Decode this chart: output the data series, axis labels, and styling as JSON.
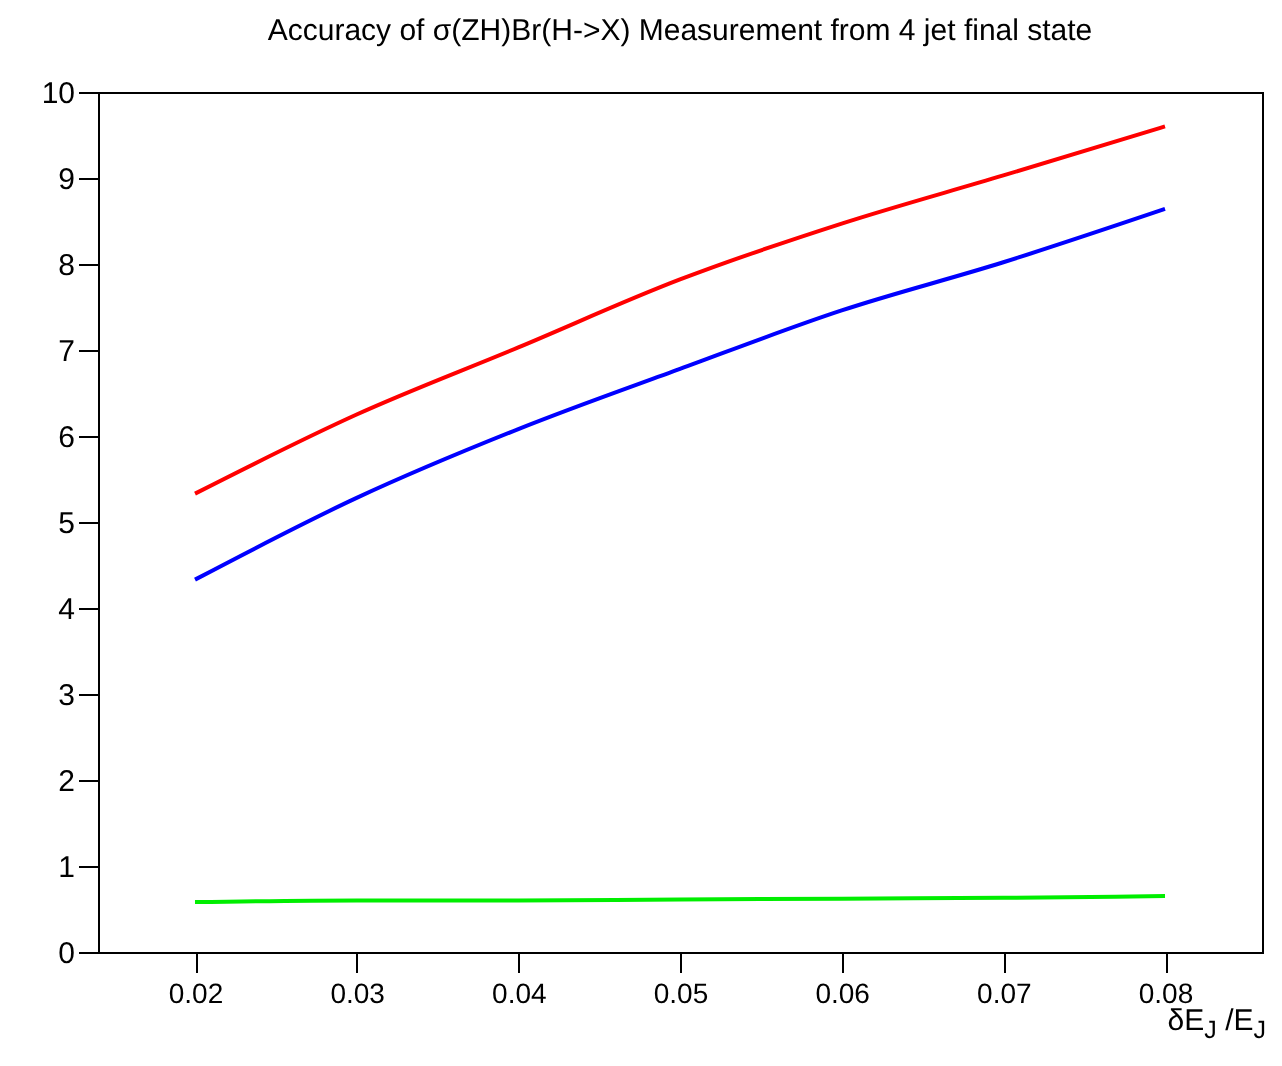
{
  "chart_data": {
    "type": "line",
    "title": "Accuracy of σ(ZH)Br(H->X) Measurement from 4 jet final state",
    "xlabel": "δE$_{J}$ /E$_{J}$",
    "x": [
      0.02,
      0.03,
      0.04,
      0.05,
      0.06,
      0.07,
      0.08
    ],
    "series": [
      {
        "color": "#ff0000",
        "values": [
          5.33,
          6.25,
          7.03,
          7.82,
          8.47,
          9.03,
          9.6
        ]
      },
      {
        "color": "#0000ff",
        "values": [
          4.33,
          5.28,
          6.08,
          6.78,
          7.46,
          8.02,
          8.64
        ]
      },
      {
        "color": "#00ee00",
        "values": [
          0.58,
          0.6,
          0.6,
          0.61,
          0.62,
          0.63,
          0.65
        ]
      }
    ],
    "xlim": [
      0.014,
      0.086
    ],
    "xticks": [
      0.02,
      0.03,
      0.04,
      0.05,
      0.06,
      0.07,
      0.08
    ],
    "ylim": [
      0,
      10
    ],
    "yticks": [
      0,
      1,
      2,
      3,
      4,
      5,
      6,
      7,
      8,
      9,
      10
    ],
    "grid": false,
    "marker": "none",
    "line_style": "solid"
  }
}
